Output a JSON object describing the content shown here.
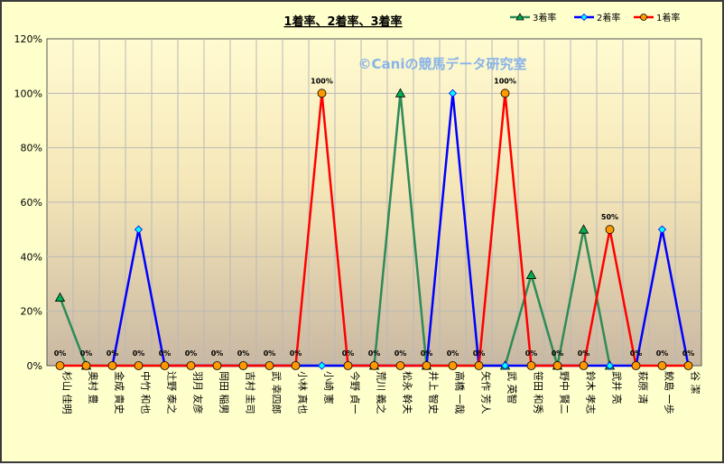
{
  "chart_data": {
    "type": "line",
    "title": "1着率、2着率、3着率",
    "watermark": "©Caniの競馬データ研究室",
    "y_ticks": [
      "0%",
      "20%",
      "40%",
      "60%",
      "80%",
      "100%",
      "120%"
    ],
    "ylim": [
      0,
      120
    ],
    "grid": true,
    "legend_position": "top-right",
    "categories": [
      "杉山 佳明",
      "奥村 豊",
      "金成 貴史",
      "中竹 和也",
      "辻野 泰之",
      "羽月 友彦",
      "岡田 稲男",
      "吉村 圭司",
      "武 幸四郎",
      "小林 真也",
      "小崎 憲",
      "今野 貞一",
      "荒川 義之",
      "松永 幹夫",
      "井上 智史",
      "高橋 一哉",
      "矢作 芳人",
      "武 英智",
      "笹田 和秀",
      "野中 賢二",
      "鈴木 孝志",
      "武井 亮",
      "萩原 清",
      "鮫島 一歩",
      "谷 潔"
    ],
    "series": [
      {
        "name": "3着率",
        "color": "#2e8b57",
        "marker": "triangle",
        "marker_fill": "#00b050",
        "values": [
          25,
          0,
          null,
          null,
          null,
          null,
          null,
          null,
          null,
          null,
          null,
          null,
          0,
          100,
          0,
          null,
          null,
          0,
          33.3,
          0,
          50,
          0,
          null,
          null,
          null
        ]
      },
      {
        "name": "2着率",
        "color": "#0000ff",
        "marker": "diamond",
        "marker_fill": "#00ffff",
        "values": [
          null,
          null,
          0,
          50,
          0,
          null,
          null,
          null,
          null,
          0,
          0,
          null,
          null,
          null,
          0,
          100,
          0,
          0,
          null,
          null,
          null,
          0,
          0,
          50,
          0
        ]
      },
      {
        "name": "1着率",
        "color": "#ff0000",
        "marker": "circle",
        "marker_fill": "#ff9900",
        "values": [
          0,
          0,
          0,
          0,
          0,
          0,
          0,
          0,
          0,
          0,
          100,
          0,
          0,
          0,
          0,
          0,
          0,
          100,
          0,
          0,
          0,
          50,
          0,
          0,
          0
        ]
      }
    ],
    "data_labels": [
      "0%",
      "0%",
      "0%",
      "0%",
      "0%",
      "0%",
      "0%",
      "0%",
      "0%",
      "0%",
      "100%",
      "0%",
      "0%",
      "0%",
      "0%",
      "0%",
      "0%",
      "100%",
      "0%",
      "0%",
      "0%",
      "50%",
      "0%",
      "0%",
      "0%"
    ]
  }
}
